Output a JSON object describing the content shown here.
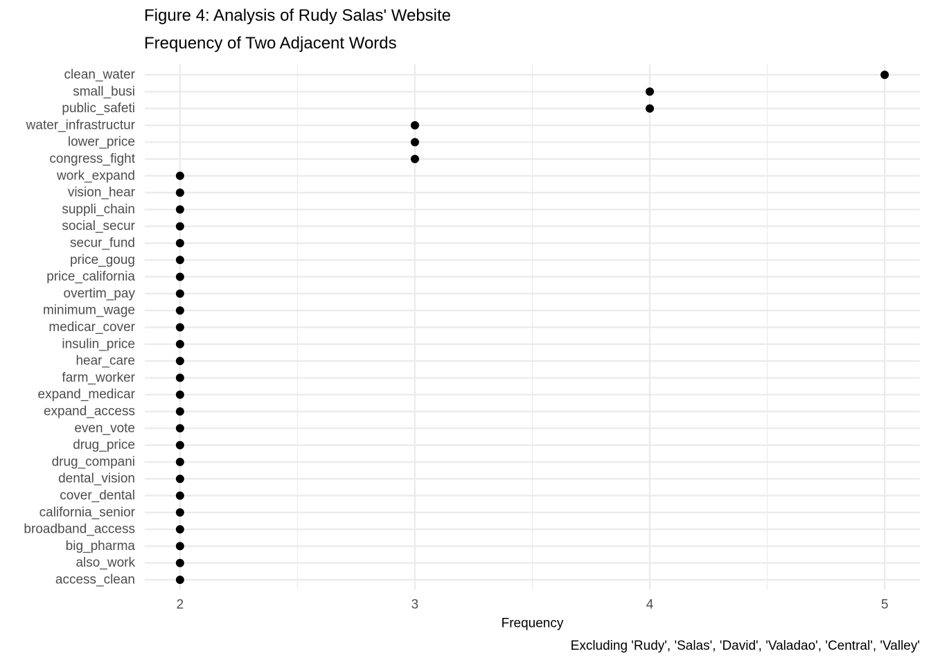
{
  "chart_data": {
    "type": "scatter",
    "title": "Figure 4: Analysis of Rudy Salas' Website",
    "subtitle": "Frequency of Two Adjacent Words",
    "xlabel": "Frequency",
    "ylabel": "",
    "caption": "Excluding 'Rudy', 'Salas', 'David', 'Valadao', 'Central', 'Valley'",
    "xlim": [
      1.85,
      5.15
    ],
    "x_ticks": [
      2,
      3,
      4,
      5
    ],
    "grid": true,
    "legend": "none",
    "point_color": "#000000",
    "grid_color": "#ebebeb",
    "points": [
      {
        "label": "clean_water",
        "value": 5
      },
      {
        "label": "small_busi",
        "value": 4
      },
      {
        "label": "public_safeti",
        "value": 4
      },
      {
        "label": "water_infrastructur",
        "value": 3
      },
      {
        "label": "lower_price",
        "value": 3
      },
      {
        "label": "congress_fight",
        "value": 3
      },
      {
        "label": "work_expand",
        "value": 2
      },
      {
        "label": "vision_hear",
        "value": 2
      },
      {
        "label": "suppli_chain",
        "value": 2
      },
      {
        "label": "social_secur",
        "value": 2
      },
      {
        "label": "secur_fund",
        "value": 2
      },
      {
        "label": "price_goug",
        "value": 2
      },
      {
        "label": "price_california",
        "value": 2
      },
      {
        "label": "overtim_pay",
        "value": 2
      },
      {
        "label": "minimum_wage",
        "value": 2
      },
      {
        "label": "medicar_cover",
        "value": 2
      },
      {
        "label": "insulin_price",
        "value": 2
      },
      {
        "label": "hear_care",
        "value": 2
      },
      {
        "label": "farm_worker",
        "value": 2
      },
      {
        "label": "expand_medicar",
        "value": 2
      },
      {
        "label": "expand_access",
        "value": 2
      },
      {
        "label": "even_vote",
        "value": 2
      },
      {
        "label": "drug_price",
        "value": 2
      },
      {
        "label": "drug_compani",
        "value": 2
      },
      {
        "label": "dental_vision",
        "value": 2
      },
      {
        "label": "cover_dental",
        "value": 2
      },
      {
        "label": "california_senior",
        "value": 2
      },
      {
        "label": "broadband_access",
        "value": 2
      },
      {
        "label": "big_pharma",
        "value": 2
      },
      {
        "label": "also_work",
        "value": 2
      },
      {
        "label": "access_clean",
        "value": 2
      }
    ]
  }
}
